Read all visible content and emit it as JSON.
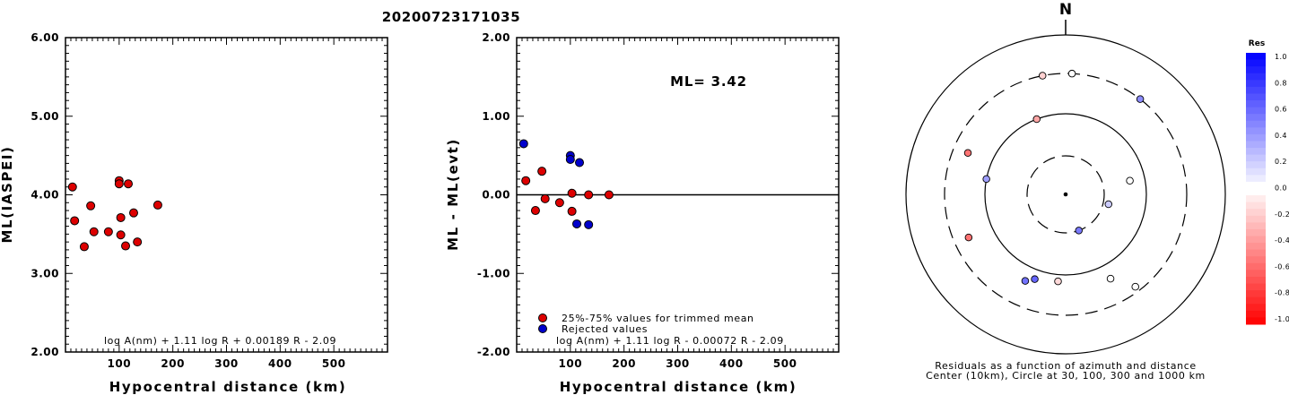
{
  "title": "20200723171035",
  "chart_data": [
    {
      "type": "scatter",
      "xlabel": "Hypocentral distance (km)",
      "ylabel": "ML(IASPEI)",
      "xlim": [
        0,
        600
      ],
      "ylim": [
        2.0,
        6.0
      ],
      "xticks": [
        "100",
        "200",
        "300",
        "400",
        "500"
      ],
      "yticks": [
        "2.00",
        "3.00",
        "4.00",
        "5.00",
        "6.00"
      ],
      "formula": "log A(nm) + 1.11 log R + 0.00189 R - 2.09",
      "series": [
        {
          "color": "#dd0000",
          "points": [
            [
              13,
              4.1
            ],
            [
              17,
              3.67
            ],
            [
              35,
              3.34
            ],
            [
              47,
              3.86
            ],
            [
              53,
              3.53
            ],
            [
              80,
              3.53
            ],
            [
              100,
              4.18
            ],
            [
              100,
              4.14
            ],
            [
              103,
              3.71
            ],
            [
              103,
              3.49
            ],
            [
              112,
              3.35
            ],
            [
              117,
              4.14
            ],
            [
              127,
              3.77
            ],
            [
              134,
              3.4
            ],
            [
              172,
              3.87
            ]
          ]
        }
      ]
    },
    {
      "type": "scatter",
      "xlabel": "Hypocentral distance (km)",
      "ylabel": "ML - ML(evt)",
      "xlim": [
        0,
        600
      ],
      "ylim": [
        -2.0,
        2.0
      ],
      "xticks": [
        "100",
        "200",
        "300",
        "400",
        "500"
      ],
      "yticks": [
        "-2.00",
        "-1.00",
        "0.00",
        "1.00",
        "2.00"
      ],
      "ml_text": "ML= 3.42",
      "formula": "log A(nm) + 1.11 log R - 0.00072 R - 2.09",
      "series": [
        {
          "name": "25%-75% values for trimmed mean",
          "color": "#dd0000",
          "points": [
            [
              17,
              0.18
            ],
            [
              35,
              -0.2
            ],
            [
              47,
              0.3
            ],
            [
              53,
              -0.05
            ],
            [
              80,
              -0.1
            ],
            [
              103,
              0.02
            ],
            [
              103,
              -0.21
            ],
            [
              134,
              0.0
            ],
            [
              172,
              0.0
            ]
          ]
        },
        {
          "name": "Rejected values",
          "color": "#0000cc",
          "points": [
            [
              13,
              0.65
            ],
            [
              100,
              0.5
            ],
            [
              100,
              0.45
            ],
            [
              112,
              -0.37
            ],
            [
              117,
              0.41
            ],
            [
              134,
              -0.38
            ]
          ]
        }
      ]
    },
    {
      "type": "polar-scatter",
      "north_label": "N",
      "caption_line1": "Residuals as a function of azimuth and distance",
      "caption_line2": "Center (10km), Circle at 30, 100, 300 and 1000 km",
      "rings_km": [
        30,
        100,
        300,
        1000
      ],
      "points": [
        {
          "azimuth": 3,
          "distance_km": 300,
          "residual": 0.0
        },
        {
          "azimuth": 349,
          "distance_km": 300,
          "residual": -0.18
        },
        {
          "azimuth": 38,
          "distance_km": 300,
          "residual": 0.45
        },
        {
          "azimuth": 339,
          "distance_km": 100,
          "residual": -0.35
        },
        {
          "azimuth": 293,
          "distance_km": 200,
          "residual": -0.55
        },
        {
          "azimuth": 281,
          "distance_km": 100,
          "residual": 0.38
        },
        {
          "azimuth": 78,
          "distance_km": 65,
          "residual": 0.0
        },
        {
          "azimuth": 103,
          "distance_km": 35,
          "residual": 0.2
        },
        {
          "azimuth": 160,
          "distance_km": 30,
          "residual": 0.52
        },
        {
          "azimuth": 246,
          "distance_km": 200,
          "residual": -0.55
        },
        {
          "azimuth": 185,
          "distance_km": 120,
          "residual": -0.15
        },
        {
          "azimuth": 200,
          "distance_km": 130,
          "residual": 0.6
        },
        {
          "azimuth": 205,
          "distance_km": 150,
          "residual": 0.55
        },
        {
          "azimuth": 152,
          "distance_km": 150,
          "residual": 0.0
        },
        {
          "azimuth": 143,
          "distance_km": 260,
          "residual": 0.0
        }
      ]
    }
  ],
  "colorbar": {
    "title": "Res",
    "labels": [
      "1.0",
      "0.8",
      "0.6",
      "0.4",
      "0.2",
      "0.0",
      "-0.2",
      "-0.4",
      "-0.6",
      "-0.8",
      "-1.0"
    ]
  }
}
